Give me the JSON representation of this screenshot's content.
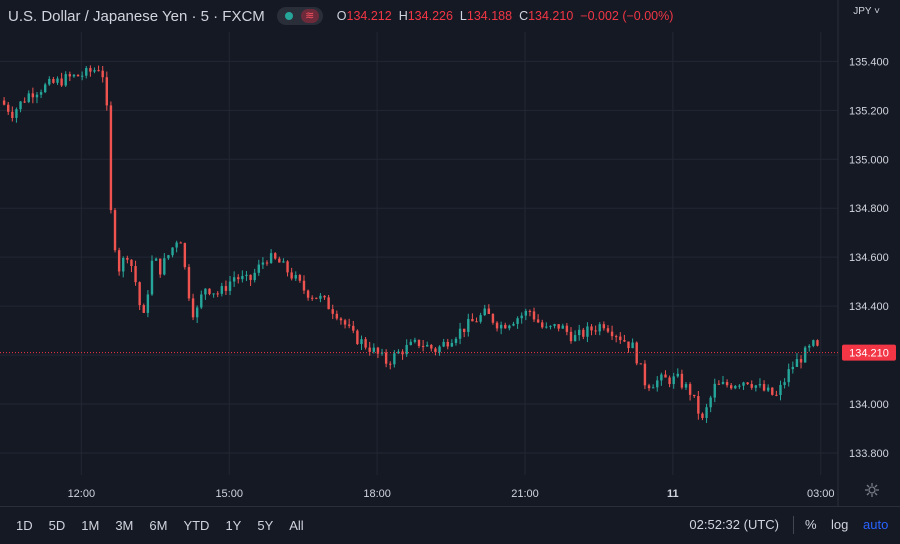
{
  "header": {
    "symbol": "U.S. Dollar / Japanese Yen · 5 · FXCM",
    "wave_icon": "≋",
    "ohlc": [
      {
        "label": "O",
        "value": "134.212"
      },
      {
        "label": "H",
        "value": "134.226"
      },
      {
        "label": "L",
        "value": "134.188"
      },
      {
        "label": "C",
        "value": "134.210"
      }
    ],
    "change": "−0.002 (−0.00%)",
    "currency": "JPY ˅"
  },
  "colors": {
    "background": "#151924",
    "up": "#26a69a",
    "down": "#ef5350",
    "grid": "#232733",
    "text": "#d1d4dc",
    "price_label_bg": "#f23645",
    "accent": "#2962ff"
  },
  "chart_data": {
    "type": "candlestick",
    "title": "U.S. Dollar / Japanese Yen · 5 · FXCM",
    "ylim": [
      133.71,
      135.52
    ],
    "y_ticks": [
      "135.400",
      "135.200",
      "135.000",
      "134.800",
      "134.600",
      "134.400",
      "134.200",
      "134.000",
      "133.800"
    ],
    "x_ticks": [
      {
        "label": "12:00",
        "t": 12.0
      },
      {
        "label": "15:00",
        "t": 15.0
      },
      {
        "label": "18:00",
        "t": 18.0
      },
      {
        "label": "21:00",
        "t": 21.0
      },
      {
        "label": "11",
        "t": 24.0
      },
      {
        "label": "03:00",
        "t": 27.0
      }
    ],
    "x_range": [
      10.35,
      27.35
    ],
    "last_price": "134.210",
    "last_value": 134.21,
    "close_path": [
      [
        10.35,
        135.24
      ],
      [
        10.6,
        135.19
      ],
      [
        10.95,
        135.27
      ],
      [
        11.3,
        135.3
      ],
      [
        11.7,
        135.33
      ],
      [
        12.1,
        135.35
      ],
      [
        12.4,
        135.38
      ],
      [
        12.5,
        135.28
      ],
      [
        12.6,
        134.78
      ],
      [
        12.75,
        134.55
      ],
      [
        12.95,
        134.62
      ],
      [
        13.1,
        134.5
      ],
      [
        13.25,
        134.33
      ],
      [
        13.45,
        134.6
      ],
      [
        13.6,
        134.55
      ],
      [
        13.8,
        134.62
      ],
      [
        14.0,
        134.7
      ],
      [
        14.15,
        134.48
      ],
      [
        14.3,
        134.35
      ],
      [
        14.5,
        134.48
      ],
      [
        14.8,
        134.45
      ],
      [
        15.1,
        134.52
      ],
      [
        15.4,
        134.5
      ],
      [
        15.75,
        134.6
      ],
      [
        16.0,
        134.58
      ],
      [
        16.25,
        134.53
      ],
      [
        16.55,
        134.46
      ],
      [
        16.85,
        134.43
      ],
      [
        17.2,
        134.37
      ],
      [
        17.5,
        134.28
      ],
      [
        17.85,
        134.23
      ],
      [
        18.2,
        134.17
      ],
      [
        18.5,
        134.22
      ],
      [
        18.85,
        134.25
      ],
      [
        19.2,
        134.22
      ],
      [
        19.55,
        134.28
      ],
      [
        19.9,
        134.33
      ],
      [
        20.2,
        134.37
      ],
      [
        20.5,
        134.32
      ],
      [
        20.8,
        134.35
      ],
      [
        21.1,
        134.38
      ],
      [
        21.4,
        134.3
      ],
      [
        21.7,
        134.32
      ],
      [
        22.0,
        134.27
      ],
      [
        22.3,
        134.3
      ],
      [
        22.6,
        134.33
      ],
      [
        22.9,
        134.28
      ],
      [
        23.2,
        134.23
      ],
      [
        23.45,
        134.08
      ],
      [
        23.8,
        134.1
      ],
      [
        24.1,
        134.1
      ],
      [
        24.35,
        134.05
      ],
      [
        24.6,
        133.93
      ],
      [
        24.85,
        134.07
      ],
      [
        25.15,
        134.08
      ],
      [
        25.5,
        134.1
      ],
      [
        25.8,
        134.06
      ],
      [
        26.1,
        134.03
      ],
      [
        26.4,
        134.15
      ],
      [
        26.65,
        134.2
      ],
      [
        26.85,
        134.24
      ],
      [
        27.0,
        134.21
      ]
    ]
  },
  "bottom_bar": {
    "ranges": [
      "1D",
      "5D",
      "1M",
      "3M",
      "6M",
      "YTD",
      "1Y",
      "5Y",
      "All"
    ],
    "clock": "02:52:32 (UTC)",
    "percent": "%",
    "log": "log",
    "auto": "auto"
  }
}
